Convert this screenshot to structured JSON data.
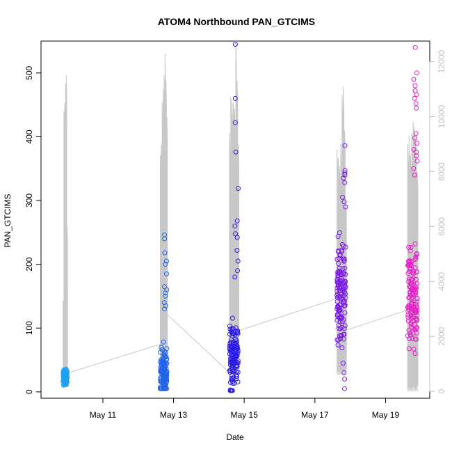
{
  "chart_data": {
    "type": "scatter",
    "title": "ATOM4 Northbound PAN_GTCIMS",
    "xlabel": "Date",
    "ylabel": "PAN_GTCIMS",
    "x_type": "date",
    "xlim": [
      "2016-05-09T06:00",
      "2016-05-20T06:00"
    ],
    "ylim": [
      -10,
      550
    ],
    "y2lim": [
      -250,
      12750
    ],
    "x_ticks": [
      {
        "date": "2016-05-11T00:00",
        "label": "May 11"
      },
      {
        "date": "2016-05-13T00:00",
        "label": "May 13"
      },
      {
        "date": "2016-05-15T00:00",
        "label": "May 15"
      },
      {
        "date": "2016-05-17T00:00",
        "label": "May 17"
      },
      {
        "date": "2016-05-19T00:00",
        "label": "May 19"
      }
    ],
    "y_ticks": [
      0,
      100,
      200,
      300,
      400,
      500
    ],
    "y2_ticks": [
      0,
      2000,
      4000,
      6000,
      8000,
      10000,
      12000
    ],
    "grid": false,
    "legend": "none",
    "line_color": "#c8c8c8",
    "point_colors": [
      "#1ea0f0",
      "#2264e6",
      "#2a1ae8",
      "#7a1ae0",
      "#e61ec8"
    ],
    "days": [
      {
        "day": "2016-05-09",
        "time_span": [
          "2016-05-09T21:00",
          "2016-05-09T23:45"
        ],
        "color": "#1ea0f0",
        "y_range": [
          8,
          42
        ],
        "y_center": 23,
        "y_outliers": [],
        "secondary_peaks": [
          3300,
          10200,
          10500,
          11200,
          11500,
          6000
        ],
        "secondary_floor": 800
      },
      {
        "day": "2016-05-12",
        "time_span": [
          "2016-05-12T15:00",
          "2016-05-12T19:30"
        ],
        "color": "#2264e6",
        "y_range": [
          5,
          130
        ],
        "y_center": 28,
        "y_outliers": [
          246,
          240,
          218,
          205,
          200,
          185,
          165,
          160,
          155,
          150,
          140,
          135,
          130
        ],
        "secondary_peaks": [
          8600,
          9000,
          10500,
          11000,
          11500,
          12300,
          11300,
          10000
        ],
        "secondary_floor": 1200
      },
      {
        "day": "2016-05-14",
        "time_span": [
          "2016-05-14T14:00",
          "2016-05-14T20:00"
        ],
        "color": "#2a1ae8",
        "y_range": [
          2,
          150
        ],
        "y_center": 55,
        "y_outliers": [
          545,
          460,
          422,
          376,
          319,
          268,
          260,
          248,
          242,
          222,
          205,
          190,
          180
        ],
        "secondary_peaks": [
          9400,
          10700,
          10600,
          10500,
          10300,
          12800,
          11300,
          9000
        ],
        "secondary_floor": 600
      },
      {
        "day": "2016-05-17",
        "time_span": [
          "2016-05-17T15:00",
          "2016-05-17T21:00"
        ],
        "color": "#7a1ae0",
        "y_range": [
          20,
          280
        ],
        "y_center": 150,
        "y_outliers": [
          386,
          347,
          343,
          340,
          335,
          328,
          305,
          298,
          290,
          45,
          30,
          20,
          5
        ],
        "secondary_peaks": [
          8800,
          8500,
          8200,
          9000,
          10800,
          11100,
          9500,
          7000
        ],
        "secondary_floor": 600
      },
      {
        "day": "2016-05-19",
        "time_span": [
          "2016-05-19T15:00",
          "2016-05-19T21:30"
        ],
        "color": "#e61ec8",
        "y_range": [
          60,
          300
        ],
        "y_center": 140,
        "y_outliers": [
          540,
          500,
          490,
          480,
          472,
          466,
          460,
          452,
          445,
          405,
          398,
          390,
          380,
          376,
          370,
          362,
          350,
          340
        ],
        "secondary_peaks": [
          9000,
          9300,
          8600,
          9400,
          9800,
          9600,
          9200,
          8000
        ],
        "secondary_floor": 0
      }
    ],
    "connector_points": [
      {
        "date": "2016-05-09T22:00",
        "value": 28
      },
      {
        "date": "2016-05-12T17:00",
        "value": 76
      },
      {
        "date": "2016-05-12T18:00",
        "value": 125
      },
      {
        "date": "2016-05-14T15:00",
        "value": 28
      },
      {
        "date": "2016-05-14T19:00",
        "value": 95
      },
      {
        "date": "2016-05-17T17:00",
        "value": 148
      },
      {
        "date": "2016-05-17T19:00",
        "value": 95
      },
      {
        "date": "2016-05-19T17:00",
        "value": 130
      }
    ]
  }
}
